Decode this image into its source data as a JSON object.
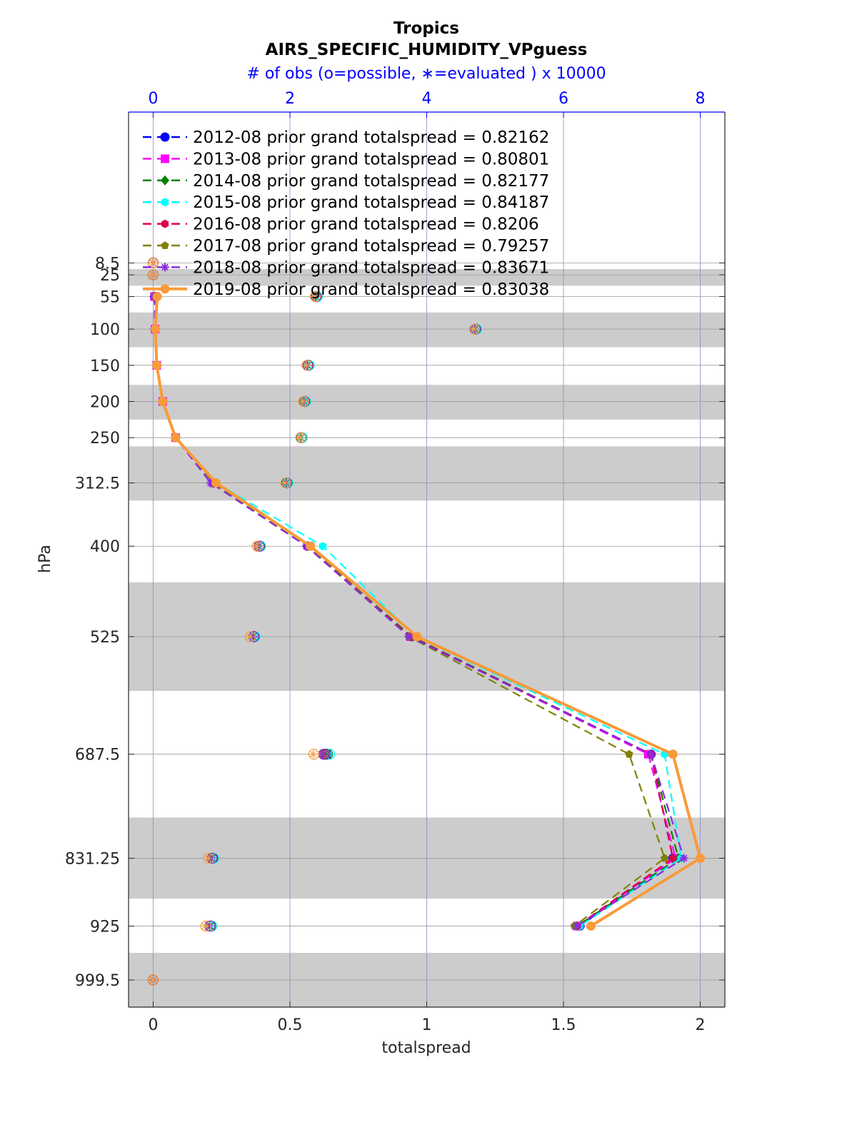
{
  "chart_data": {
    "type": "line",
    "title": "Tropics",
    "subtitle": "AIRS_SPECIFIC_HUMIDITY_VPguess",
    "top_axis_label": "# of obs (o=possible, ∗=evaluated ) x 10000",
    "xlabel": "totalspread",
    "ylabel": "hPa",
    "xlim": [
      -0.09,
      2.09
    ],
    "top_xlim": [
      -0.36,
      8.36
    ],
    "x_ticks": [
      "0",
      "0.5",
      "1",
      "1.5",
      "2"
    ],
    "x_tick_values": [
      0,
      0.5,
      1,
      1.5,
      2
    ],
    "top_ticks": [
      "0",
      "2",
      "4",
      "6",
      "8"
    ],
    "top_tick_values": [
      0,
      2,
      4,
      6,
      8
    ],
    "y_ticks": [
      "8.5",
      "25",
      "55",
      "100",
      "150",
      "200",
      "250",
      "312.5",
      "400",
      "525",
      "687.5",
      "831.25",
      "925",
      "999.5"
    ],
    "levels": [
      8.5,
      25,
      55,
      100,
      150,
      200,
      250,
      312.5,
      400,
      525,
      687.5,
      831.25,
      925,
      999.5
    ],
    "ylim": [
      -200,
      1037
    ],
    "y_reversed": true,
    "grid": true,
    "legend_position": "top-left",
    "shaded_bands": [
      [
        17,
        40
      ],
      [
        77,
        125
      ],
      [
        177,
        225
      ],
      [
        262,
        337
      ],
      [
        450,
        600
      ],
      [
        775,
        887
      ],
      [
        962,
        1037
      ]
    ],
    "series": [
      {
        "name": "2012-08 prior grand totalspread = 0.82162",
        "color": "#0000ff",
        "dash": true,
        "marker": "circle",
        "values": [
          null,
          null,
          0.005,
          0.007,
          0.013,
          0.035,
          0.082,
          0.22,
          0.565,
          0.945,
          1.82,
          1.9,
          1.56,
          null
        ],
        "obs_possible": [
          0,
          0,
          2.39,
          4.72,
          2.27,
          2.22,
          2.17,
          1.96,
          1.56,
          1.48,
          2.53,
          0.87,
          0.84,
          0
        ],
        "obs_evaluated": [
          0,
          0,
          2.38,
          4.71,
          2.26,
          2.21,
          2.16,
          1.95,
          1.55,
          1.47,
          2.52,
          0.86,
          0.83,
          0
        ]
      },
      {
        "name": "2013-08 prior grand totalspread = 0.80801",
        "color": "#ff00ff",
        "dash": true,
        "marker": "square",
        "values": [
          null,
          null,
          0.005,
          0.007,
          0.013,
          0.035,
          0.082,
          0.22,
          0.57,
          0.94,
          1.81,
          1.91,
          1.55,
          null
        ],
        "obs_possible": [
          0,
          0,
          2.39,
          4.72,
          2.27,
          2.22,
          2.17,
          1.96,
          1.56,
          1.48,
          2.55,
          0.87,
          0.84,
          0
        ],
        "obs_evaluated": [
          0,
          0,
          2.38,
          4.71,
          2.26,
          2.21,
          2.16,
          1.95,
          1.55,
          1.47,
          2.54,
          0.86,
          0.83,
          0
        ]
      },
      {
        "name": "2014-08 prior grand totalspread = 0.82177",
        "color": "#008000",
        "dash": true,
        "marker": "diamond",
        "values": [
          null,
          null,
          0.005,
          0.007,
          0.013,
          0.035,
          0.082,
          0.22,
          0.565,
          0.945,
          1.82,
          1.92,
          1.55,
          null
        ],
        "obs_possible": [
          0,
          0,
          2.39,
          4.72,
          2.27,
          2.22,
          2.17,
          1.96,
          1.56,
          1.48,
          2.55,
          0.87,
          0.84,
          0
        ],
        "obs_evaluated": [
          0,
          0,
          2.38,
          4.71,
          2.26,
          2.21,
          2.16,
          1.95,
          1.55,
          1.47,
          2.54,
          0.86,
          0.83,
          0
        ]
      },
      {
        "name": "2015-08 prior grand totalspread = 0.84187",
        "color": "#00ffff",
        "dash": true,
        "marker": "star6",
        "values": [
          null,
          null,
          0.005,
          0.007,
          0.013,
          0.035,
          0.082,
          0.23,
          0.62,
          0.96,
          1.87,
          1.93,
          1.56,
          null
        ],
        "obs_possible": [
          0,
          0,
          2.4,
          4.73,
          2.28,
          2.23,
          2.18,
          1.97,
          1.57,
          1.49,
          2.58,
          0.89,
          0.86,
          0
        ],
        "obs_evaluated": [
          0,
          0,
          2.39,
          4.72,
          2.27,
          2.22,
          2.17,
          1.96,
          1.56,
          1.48,
          2.57,
          0.88,
          0.85,
          0
        ]
      },
      {
        "name": "2016-08 prior grand totalspread = 0.8206",
        "color": "#e0004e",
        "dash": true,
        "marker": "hexagram",
        "values": [
          null,
          null,
          0.005,
          0.007,
          0.013,
          0.035,
          0.082,
          0.22,
          0.565,
          0.94,
          1.82,
          1.9,
          1.55,
          null
        ],
        "obs_possible": [
          0,
          0,
          2.38,
          4.71,
          2.26,
          2.21,
          2.16,
          1.95,
          1.55,
          1.47,
          2.51,
          0.86,
          0.83,
          0
        ],
        "obs_evaluated": [
          0,
          0,
          2.37,
          4.7,
          2.25,
          2.2,
          2.15,
          1.94,
          1.54,
          1.46,
          2.5,
          0.85,
          0.82,
          0
        ]
      },
      {
        "name": "2017-08 prior grand totalspread = 0.79257",
        "color": "#808000",
        "dash": true,
        "marker": "pentagon",
        "values": [
          null,
          null,
          0.005,
          0.007,
          0.013,
          0.035,
          0.082,
          0.22,
          0.565,
          0.935,
          1.74,
          1.87,
          1.54,
          null
        ],
        "obs_possible": [
          0,
          0,
          2.38,
          4.71,
          2.26,
          2.21,
          2.16,
          1.95,
          1.55,
          1.47,
          2.5,
          0.86,
          0.83,
          0
        ],
        "obs_evaluated": [
          0,
          0,
          2.37,
          4.7,
          2.25,
          2.2,
          2.15,
          1.94,
          1.54,
          1.46,
          2.49,
          0.85,
          0.82,
          0
        ]
      },
      {
        "name": "2018-08 prior grand totalspread = 0.83671",
        "color": "#8a2be2",
        "dash": true,
        "marker": "asterisk",
        "values": [
          null,
          null,
          0.005,
          0.007,
          0.013,
          0.035,
          0.082,
          0.21,
          0.56,
          0.935,
          1.82,
          1.94,
          1.55,
          null
        ],
        "obs_possible": [
          0,
          0,
          2.38,
          4.71,
          2.26,
          2.21,
          2.16,
          1.95,
          1.55,
          1.47,
          2.49,
          0.86,
          0.83,
          0
        ],
        "obs_evaluated": [
          0,
          0,
          2.37,
          4.7,
          2.25,
          2.2,
          2.15,
          1.94,
          1.54,
          1.46,
          2.48,
          0.85,
          0.82,
          0
        ]
      },
      {
        "name": "2019-08 prior grand totalspread = 0.83038",
        "color": "#f99a3a",
        "dash": false,
        "marker": "circle",
        "values": [
          null,
          null,
          0.015,
          0.008,
          0.013,
          0.035,
          0.082,
          0.23,
          0.575,
          0.965,
          1.9,
          2.0,
          1.6,
          null
        ],
        "obs_possible": [
          0,
          0,
          2.37,
          4.7,
          2.25,
          2.2,
          2.16,
          1.94,
          1.52,
          1.42,
          2.35,
          0.81,
          0.77,
          0
        ],
        "obs_evaluated": [
          0,
          0,
          2.36,
          4.69,
          2.24,
          2.19,
          2.15,
          1.93,
          1.51,
          1.41,
          2.34,
          0.8,
          0.76,
          0
        ]
      }
    ]
  }
}
